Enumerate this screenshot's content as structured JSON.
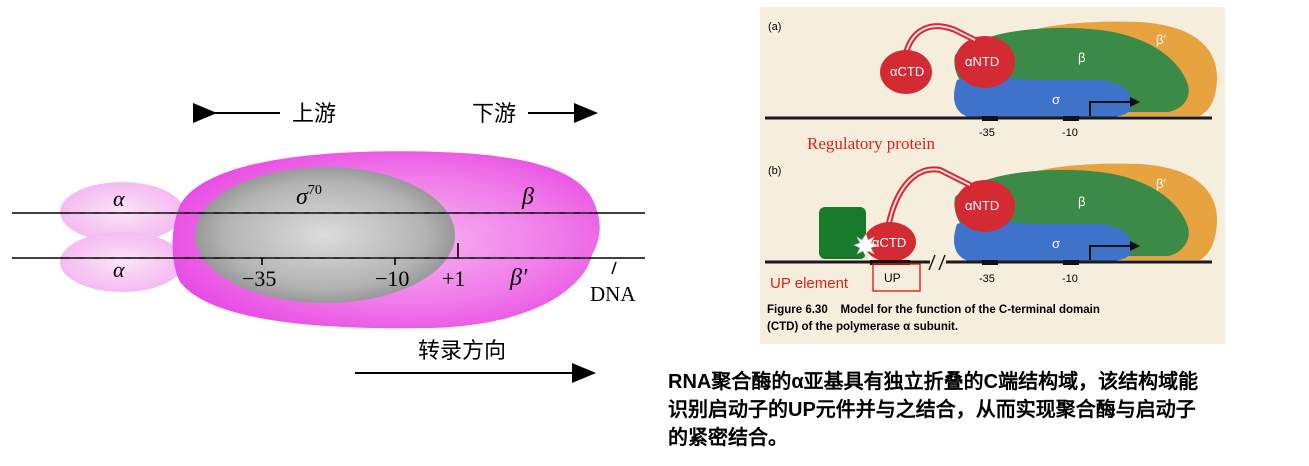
{
  "left_diagram": {
    "upstream": "上游",
    "downstream": "下游",
    "alpha_top": "α",
    "alpha_bottom": "α",
    "sigma": "σ",
    "sigma_sup": "70",
    "beta": "β",
    "beta_prime": "β′",
    "minus35": "−35",
    "minus10": "−10",
    "plus1": "+1",
    "dna": "DNA",
    "direction": "转录方向",
    "colors": {
      "magenta": "#ea4fe8",
      "gray": "#9a9a9a",
      "pink": "#f7c3f3"
    }
  },
  "figure": {
    "panel_a_label": "(a)",
    "panel_b_label": "(b)",
    "actd": "αCTD",
    "antd": "αNTD",
    "beta": "β",
    "beta_prime": "β′",
    "sigma": "σ",
    "m35": "-35",
    "m10": "-10",
    "regulatory_protein": "Regulatory protein",
    "up_element": "UP element",
    "up_box": "UP",
    "caption_line1": "Figure 6.30    Model for the function of the C-terminal domain",
    "caption_line2": "(CTD) of the polymerase α subunit.",
    "colors": {
      "panel_bg": "#f6eedc",
      "red": "#d42a34",
      "green": "#3c8a47",
      "orange": "#e8a341",
      "blue": "#3f73c9",
      "dark_green": "#1a7a2c",
      "label_red": "#e02018"
    }
  },
  "caption": {
    "line1": "RNA聚合酶的α亚基具有独立折叠的C端结构域，该结构域能",
    "line2": "识别启动子的UP元件并与之结合，从而实现聚合酶与启动子",
    "line3": "的紧密结合。"
  }
}
